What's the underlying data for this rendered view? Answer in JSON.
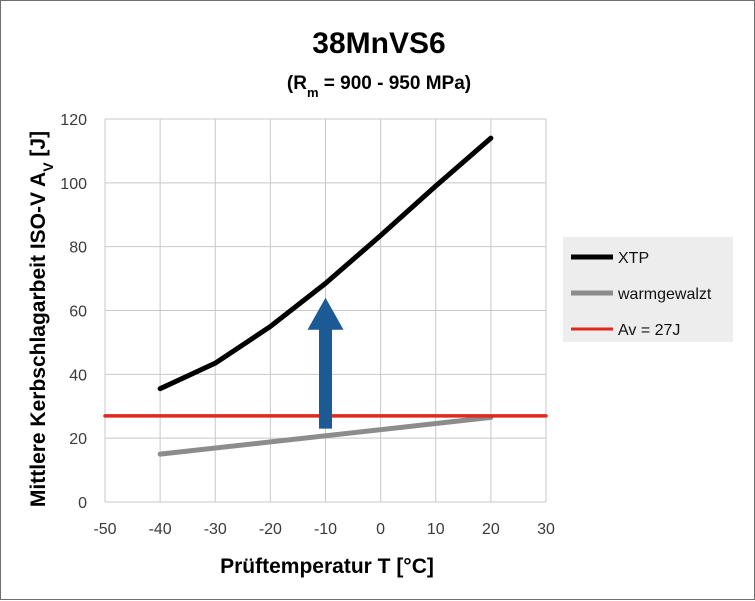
{
  "chart_data": {
    "type": "line",
    "title": "38MnVS6",
    "subtitle": {
      "prefix": "(R",
      "subscript": "m",
      "suffix": " = 900 - 950 MPa)"
    },
    "xlabel": "Prüftemperatur T [°C]",
    "ylabel": {
      "prefix": "Mittlere Kerbschlagarbeit ISO-V A",
      "subscript": "V",
      "suffix": " [J]"
    },
    "xlim": [
      -50,
      30
    ],
    "ylim": [
      0,
      120
    ],
    "xticks": [
      -50,
      -40,
      -30,
      -20,
      -10,
      0,
      10,
      20,
      30
    ],
    "yticks": [
      0,
      20,
      40,
      60,
      80,
      100,
      120
    ],
    "grid": true,
    "legend_position": "right",
    "series": [
      {
        "name": "XTP",
        "color": "#000000",
        "x": [
          -40,
          -30,
          -20,
          -10,
          0,
          10,
          20
        ],
        "y": [
          35.5,
          43.5,
          55,
          68.5,
          83.5,
          99,
          114
        ]
      },
      {
        "name": "warmgewalzt",
        "color": "#8c8c8c",
        "x": [
          -40,
          20
        ],
        "y": [
          15,
          26.5
        ]
      },
      {
        "name": "Av = 27J",
        "color": "#e0281e",
        "x": [
          -50,
          30
        ],
        "y": [
          27,
          27
        ]
      }
    ],
    "annotations": [
      {
        "type": "arrow",
        "direction": "up",
        "color": "#1b5a94",
        "x": -10,
        "y_from": 23,
        "y_to": 64
      }
    ]
  }
}
